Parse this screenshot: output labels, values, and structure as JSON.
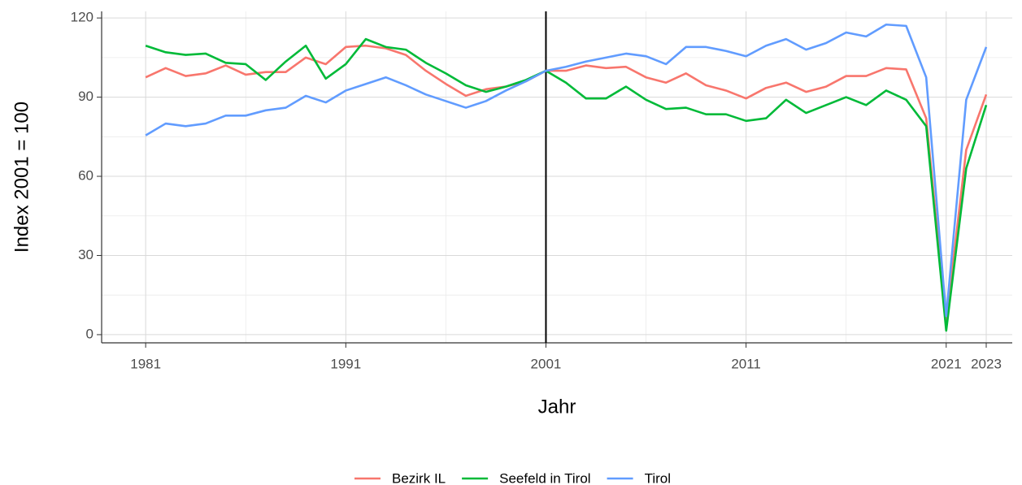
{
  "chart_data": {
    "type": "line",
    "xlabel": "Jahr",
    "ylabel": "Index 2001 = 100",
    "x": [
      1981,
      1982,
      1983,
      1984,
      1985,
      1986,
      1987,
      1988,
      1989,
      1990,
      1991,
      1992,
      1993,
      1994,
      1995,
      1996,
      1997,
      1998,
      1999,
      2000,
      2001,
      2002,
      2003,
      2004,
      2005,
      2006,
      2007,
      2008,
      2009,
      2010,
      2011,
      2012,
      2013,
      2014,
      2015,
      2016,
      2017,
      2018,
      2019,
      2020,
      2021,
      2022,
      2023
    ],
    "series": [
      {
        "name": "Bezirk IL",
        "color": "#F8766D",
        "values": [
          97.5,
          101,
          98,
          99,
          102,
          98.5,
          99.5,
          99.5,
          105,
          102.5,
          109,
          109.5,
          108.5,
          106,
          100,
          95,
          90.5,
          93,
          94,
          96,
          100,
          100,
          102,
          101,
          101.5,
          97.5,
          95.5,
          99,
          94.5,
          92.5,
          89.5,
          93.5,
          95.5,
          92,
          94,
          98,
          98,
          101,
          100.5,
          82,
          5,
          70,
          91
        ]
      },
      {
        "name": "Seefeld in Tirol",
        "color": "#00BA38",
        "values": [
          109.5,
          107,
          106,
          106.5,
          103,
          102.5,
          96.5,
          103.5,
          109.5,
          97,
          102.5,
          112,
          109,
          108,
          103,
          99,
          94.5,
          92,
          94,
          96.5,
          100,
          95.5,
          89.5,
          89.5,
          94,
          89,
          85.5,
          86,
          83.5,
          83.5,
          81,
          82,
          89,
          84,
          87,
          90,
          87,
          92.5,
          89,
          79,
          1.5,
          63,
          87
        ]
      },
      {
        "name": "Tirol",
        "color": "#619CFF",
        "values": [
          75.5,
          80,
          79,
          80,
          83,
          83,
          85,
          86,
          90.5,
          88,
          92.5,
          95,
          97.5,
          94.5,
          91,
          88.5,
          86,
          88.5,
          92.5,
          96,
          100,
          101.5,
          103.5,
          105,
          106.5,
          105.5,
          102.5,
          109,
          109,
          107.5,
          105.5,
          109.5,
          112,
          108,
          110.5,
          114.5,
          113,
          117.5,
          117,
          97.5,
          7,
          89,
          109
        ]
      }
    ],
    "xlim": [
      1978.8,
      2024.3
    ],
    "ylim": [
      -3.1,
      122.5
    ],
    "xticks": [
      1981,
      1991,
      2001,
      2011,
      2021,
      2023
    ],
    "yticks": [
      0,
      30,
      60,
      90,
      120
    ],
    "x_minor_grid": [
      1986,
      1996,
      2006,
      2016
    ],
    "y_minor_grid": [
      15,
      45,
      75,
      105
    ],
    "vline": 2001,
    "grid": true,
    "legend": "bottom"
  }
}
